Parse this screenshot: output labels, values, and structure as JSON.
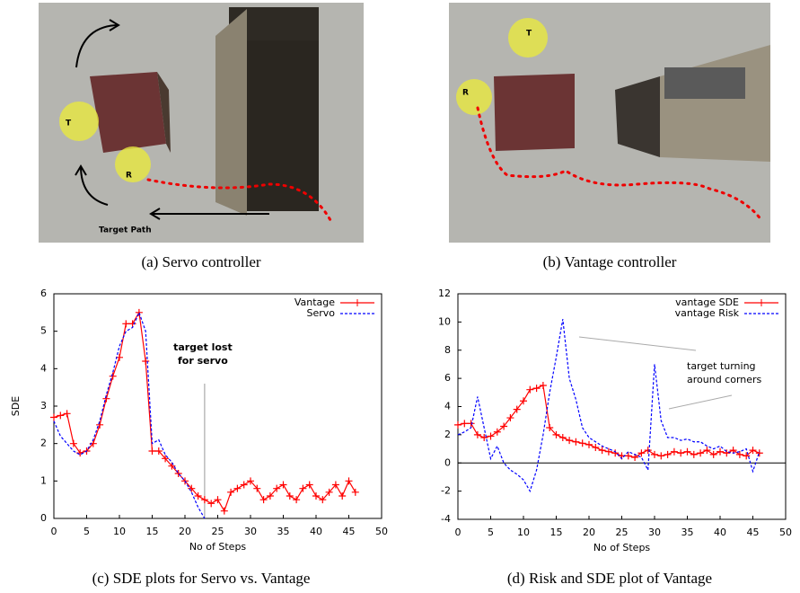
{
  "figure": {
    "panel_a": {
      "caption": "(a) Servo controller",
      "labels": [
        "T",
        "R",
        "Target Path"
      ]
    },
    "panel_b": {
      "caption": "(b) Vantage controller",
      "labels": [
        "T",
        "R"
      ]
    },
    "panel_c": {
      "caption": "(c) SDE plots for Servo vs. Vantage"
    },
    "panel_d": {
      "caption": "(d) Risk and SDE plot of Vantage"
    }
  },
  "chart_data": [
    {
      "type": "line",
      "xlabel": "No of Steps",
      "ylabel": "SDE",
      "x": [
        0,
        1,
        2,
        3,
        4,
        5,
        6,
        7,
        8,
        9,
        10,
        11,
        12,
        13,
        14,
        15,
        16,
        17,
        18,
        19,
        20,
        21,
        22,
        23,
        24,
        25,
        26,
        27,
        28,
        29,
        30,
        31,
        32,
        33,
        34,
        35,
        36,
        37,
        38,
        39,
        40,
        41,
        42,
        43,
        44,
        45,
        46
      ],
      "xlim": [
        0,
        50
      ],
      "xticks": [
        0,
        5,
        10,
        15,
        20,
        25,
        30,
        35,
        40,
        45,
        50
      ],
      "ylim": [
        0,
        6
      ],
      "yticks": [
        0,
        1,
        2,
        3,
        4,
        5,
        6
      ],
      "legend": "top-right",
      "annotation": {
        "text": [
          "target lost",
          "for servo"
        ],
        "x": 23
      },
      "series": [
        {
          "name": "Vantage",
          "color": "#ff0000",
          "marker": "+",
          "dashed": false,
          "values": [
            2.7,
            2.75,
            2.8,
            2.0,
            1.75,
            1.8,
            2.0,
            2.5,
            3.2,
            3.8,
            4.3,
            5.2,
            5.2,
            5.5,
            4.2,
            1.8,
            1.8,
            1.6,
            1.4,
            1.2,
            1.0,
            0.8,
            0.6,
            0.5,
            0.4,
            0.5,
            0.2,
            0.7,
            0.8,
            0.9,
            1.0,
            0.8,
            0.5,
            0.6,
            0.8,
            0.9,
            0.6,
            0.5,
            0.8,
            0.9,
            0.6,
            0.5,
            0.7,
            0.9,
            0.6,
            1.0,
            0.7
          ]
        },
        {
          "name": "Servo",
          "color": "#0000ff",
          "marker": null,
          "dashed": true,
          "values": [
            2.6,
            2.2,
            2.0,
            1.8,
            1.7,
            1.8,
            2.1,
            2.6,
            3.3,
            3.9,
            4.6,
            5.0,
            5.1,
            5.5,
            5.0,
            2.0,
            2.1,
            1.7,
            1.5,
            1.2,
            1.0,
            0.7,
            0.3,
            0.0,
            null,
            null,
            null,
            null,
            null,
            null,
            null,
            null,
            null,
            null,
            null,
            null,
            null,
            null,
            null,
            null,
            null,
            null,
            null,
            null,
            null,
            null,
            null
          ]
        }
      ]
    },
    {
      "type": "line",
      "xlabel": "No of Steps",
      "x": [
        0,
        1,
        2,
        3,
        4,
        5,
        6,
        7,
        8,
        9,
        10,
        11,
        12,
        13,
        14,
        15,
        16,
        17,
        18,
        19,
        20,
        21,
        22,
        23,
        24,
        25,
        26,
        27,
        28,
        29,
        30,
        31,
        32,
        33,
        34,
        35,
        36,
        37,
        38,
        39,
        40,
        41,
        42,
        43,
        44,
        45,
        46
      ],
      "xlim": [
        0,
        50
      ],
      "xticks": [
        0,
        5,
        10,
        15,
        20,
        25,
        30,
        35,
        40,
        45,
        50
      ],
      "ylim": [
        -4,
        12
      ],
      "yticks": [
        -4,
        -2,
        0,
        2,
        4,
        6,
        8,
        10,
        12
      ],
      "legend": "top-right",
      "annotation": {
        "text": [
          "target turning",
          "around corners"
        ]
      },
      "series": [
        {
          "name": "vantage SDE",
          "color": "#ff0000",
          "marker": "+",
          "dashed": false,
          "values": [
            2.7,
            2.8,
            2.8,
            2.0,
            1.8,
            1.9,
            2.2,
            2.6,
            3.2,
            3.8,
            4.4,
            5.2,
            5.3,
            5.5,
            2.5,
            2.0,
            1.8,
            1.6,
            1.5,
            1.4,
            1.3,
            1.1,
            0.9,
            0.8,
            0.7,
            0.5,
            0.5,
            0.4,
            0.7,
            0.9,
            0.6,
            0.5,
            0.6,
            0.8,
            0.7,
            0.8,
            0.6,
            0.7,
            0.9,
            0.6,
            0.8,
            0.7,
            0.9,
            0.6,
            0.5,
            0.9,
            0.7
          ]
        },
        {
          "name": "vantage Risk",
          "color": "#0000ff",
          "marker": null,
          "dashed": true,
          "values": [
            2.0,
            2.2,
            2.5,
            4.7,
            2.5,
            0.3,
            1.2,
            0.0,
            -0.5,
            -0.8,
            -1.2,
            -2.0,
            -0.5,
            2.0,
            5.0,
            7.5,
            10.2,
            6.0,
            4.5,
            2.5,
            1.8,
            1.5,
            1.2,
            1.0,
            0.8,
            0.3,
            0.8,
            0.6,
            0.4,
            -0.5,
            7.0,
            3.0,
            1.8,
            1.8,
            1.6,
            1.7,
            1.5,
            1.5,
            1.2,
            1.0,
            1.2,
            0.8,
            0.7,
            0.8,
            1.0,
            -0.6,
            0.8
          ]
        }
      ]
    }
  ]
}
